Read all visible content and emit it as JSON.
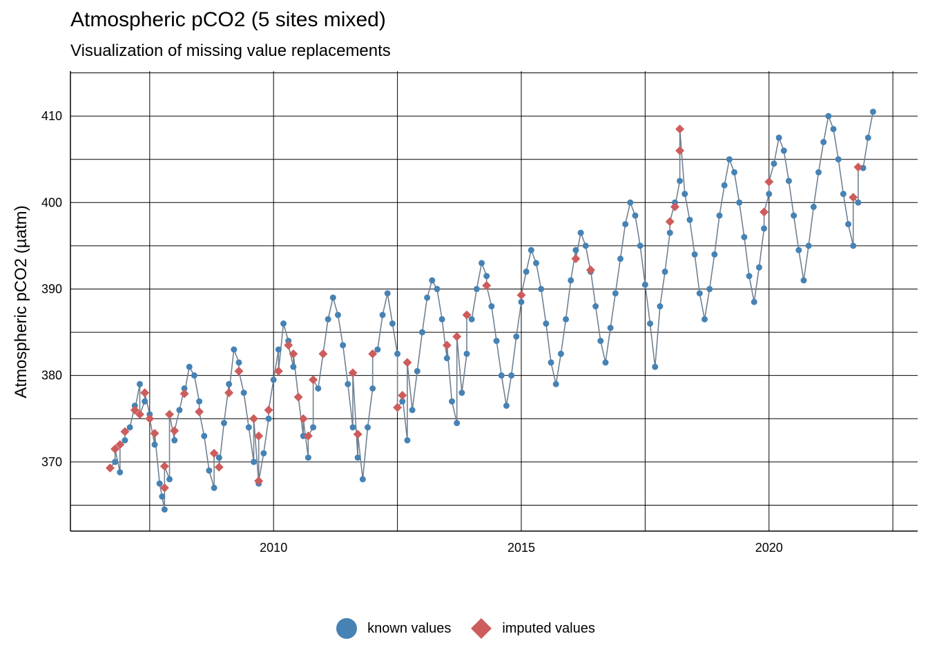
{
  "chart_data": {
    "type": "scatter",
    "title": "Atmospheric pCO2 (5 sites mixed)",
    "subtitle": "Visualization of missing value replacements",
    "xlabel": "",
    "ylabel": "Atmospheric pCO2 (µatm)",
    "xlim": [
      2005.9,
      2023.0
    ],
    "ylim": [
      362,
      415.2
    ],
    "x_major_ticks": [
      2010,
      2015,
      2020
    ],
    "x_minor_ticks": [
      2007.5,
      2012.5,
      2017.5,
      2022.5
    ],
    "y_major_ticks": [
      370,
      380,
      390,
      400,
      410
    ],
    "y_minor_ticks": [
      365,
      375,
      385,
      395,
      405,
      415
    ],
    "grid": true,
    "legend_position": "bottom",
    "colors": {
      "known": "#4682B4",
      "imputed": "#CD5C5C",
      "line": "#708090"
    },
    "series": [
      {
        "name": "known values",
        "marker": "circle",
        "sampled": true,
        "points": [
          [
            2006.8,
            370.0
          ],
          [
            2006.9,
            368.8
          ],
          [
            2007.0,
            372.5
          ],
          [
            2007.1,
            374.0
          ],
          [
            2007.2,
            376.5
          ],
          [
            2007.3,
            379.0
          ],
          [
            2007.4,
            377.0
          ],
          [
            2007.5,
            375.5
          ],
          [
            2007.6,
            372.0
          ],
          [
            2007.7,
            367.5
          ],
          [
            2007.75,
            366.0
          ],
          [
            2007.8,
            364.5
          ],
          [
            2007.9,
            368.0
          ],
          [
            2008.0,
            372.5
          ],
          [
            2008.1,
            376.0
          ],
          [
            2008.2,
            378.5
          ],
          [
            2008.3,
            381.0
          ],
          [
            2008.4,
            380.0
          ],
          [
            2008.5,
            377.0
          ],
          [
            2008.6,
            373.0
          ],
          [
            2008.7,
            369.0
          ],
          [
            2008.8,
            367.0
          ],
          [
            2008.9,
            370.5
          ],
          [
            2009.0,
            374.5
          ],
          [
            2009.1,
            379.0
          ],
          [
            2009.2,
            383.0
          ],
          [
            2009.3,
            381.5
          ],
          [
            2009.4,
            378.0
          ],
          [
            2009.5,
            374.0
          ],
          [
            2009.6,
            370.0
          ],
          [
            2009.7,
            367.5
          ],
          [
            2009.8,
            371.0
          ],
          [
            2009.9,
            375.0
          ],
          [
            2010.0,
            379.5
          ],
          [
            2010.1,
            383.0
          ],
          [
            2010.2,
            386.0
          ],
          [
            2010.3,
            384.0
          ],
          [
            2010.4,
            381.0
          ],
          [
            2010.5,
            377.5
          ],
          [
            2010.6,
            373.0
          ],
          [
            2010.7,
            370.5
          ],
          [
            2010.8,
            374.0
          ],
          [
            2010.9,
            378.5
          ],
          [
            2011.0,
            382.5
          ],
          [
            2011.1,
            386.5
          ],
          [
            2011.2,
            389.0
          ],
          [
            2011.3,
            387.0
          ],
          [
            2011.4,
            383.5
          ],
          [
            2011.5,
            379.0
          ],
          [
            2011.6,
            374.0
          ],
          [
            2011.7,
            370.5
          ],
          [
            2011.8,
            368.0
          ],
          [
            2011.9,
            374.0
          ],
          [
            2012.0,
            378.5
          ],
          [
            2012.1,
            383.0
          ],
          [
            2012.2,
            387.0
          ],
          [
            2012.3,
            389.5
          ],
          [
            2012.4,
            386.0
          ],
          [
            2012.5,
            382.5
          ],
          [
            2012.6,
            377.0
          ],
          [
            2012.7,
            372.5
          ],
          [
            2012.8,
            376.0
          ],
          [
            2012.9,
            380.5
          ],
          [
            2013.0,
            385.0
          ],
          [
            2013.1,
            389.0
          ],
          [
            2013.2,
            391.0
          ],
          [
            2013.3,
            390.0
          ],
          [
            2013.4,
            386.5
          ],
          [
            2013.5,
            382.0
          ],
          [
            2013.6,
            377.0
          ],
          [
            2013.7,
            374.5
          ],
          [
            2013.8,
            378.0
          ],
          [
            2013.9,
            382.5
          ],
          [
            2014.0,
            386.5
          ],
          [
            2014.1,
            390.0
          ],
          [
            2014.2,
            393.0
          ],
          [
            2014.3,
            391.5
          ],
          [
            2014.4,
            388.0
          ],
          [
            2014.5,
            384.0
          ],
          [
            2014.6,
            380.0
          ],
          [
            2014.7,
            376.5
          ],
          [
            2014.8,
            380.0
          ],
          [
            2014.9,
            384.5
          ],
          [
            2015.0,
            388.5
          ],
          [
            2015.1,
            392.0
          ],
          [
            2015.2,
            394.5
          ],
          [
            2015.3,
            393.0
          ],
          [
            2015.4,
            390.0
          ],
          [
            2015.5,
            386.0
          ],
          [
            2015.6,
            381.5
          ],
          [
            2015.7,
            379.0
          ],
          [
            2015.8,
            382.5
          ],
          [
            2015.9,
            386.5
          ],
          [
            2016.0,
            391.0
          ],
          [
            2016.1,
            394.5
          ],
          [
            2016.2,
            396.5
          ],
          [
            2016.3,
            395.0
          ],
          [
            2016.4,
            392.0
          ],
          [
            2016.5,
            388.0
          ],
          [
            2016.6,
            384.0
          ],
          [
            2016.7,
            381.5
          ],
          [
            2016.8,
            385.5
          ],
          [
            2016.9,
            389.5
          ],
          [
            2017.0,
            393.5
          ],
          [
            2017.1,
            397.5
          ],
          [
            2017.2,
            400.0
          ],
          [
            2017.3,
            398.5
          ],
          [
            2017.4,
            395.0
          ],
          [
            2017.5,
            390.5
          ],
          [
            2017.6,
            386.0
          ],
          [
            2017.7,
            381.0
          ],
          [
            2017.8,
            388.0
          ],
          [
            2017.9,
            392.0
          ],
          [
            2018.0,
            396.5
          ],
          [
            2018.1,
            400.0
          ],
          [
            2018.2,
            402.5
          ],
          [
            2018.3,
            401.0
          ],
          [
            2018.4,
            398.0
          ],
          [
            2018.5,
            394.0
          ],
          [
            2018.6,
            389.5
          ],
          [
            2018.7,
            386.5
          ],
          [
            2018.8,
            390.0
          ],
          [
            2018.9,
            394.0
          ],
          [
            2019.0,
            398.5
          ],
          [
            2019.1,
            402.0
          ],
          [
            2019.2,
            405.0
          ],
          [
            2019.3,
            403.5
          ],
          [
            2019.4,
            400.0
          ],
          [
            2019.5,
            396.0
          ],
          [
            2019.6,
            391.5
          ],
          [
            2019.7,
            388.5
          ],
          [
            2019.8,
            392.5
          ],
          [
            2019.9,
            397.0
          ],
          [
            2020.0,
            401.0
          ],
          [
            2020.1,
            404.5
          ],
          [
            2020.2,
            407.5
          ],
          [
            2020.3,
            406.0
          ],
          [
            2020.4,
            402.5
          ],
          [
            2020.5,
            398.5
          ],
          [
            2020.6,
            394.5
          ],
          [
            2020.7,
            391.0
          ],
          [
            2020.8,
            395.0
          ],
          [
            2020.9,
            399.5
          ],
          [
            2021.0,
            403.5
          ],
          [
            2021.1,
            407.0
          ],
          [
            2021.2,
            410.0
          ],
          [
            2021.3,
            408.5
          ],
          [
            2021.4,
            405.0
          ],
          [
            2021.5,
            401.0
          ],
          [
            2021.6,
            397.5
          ],
          [
            2021.7,
            395.0
          ],
          [
            2021.8,
            400.0
          ],
          [
            2021.9,
            404.0
          ],
          [
            2022.0,
            407.5
          ],
          [
            2022.1,
            410.5
          ]
        ]
      },
      {
        "name": "imputed values",
        "marker": "diamond",
        "sampled": true,
        "points": [
          [
            2006.7,
            369.3
          ],
          [
            2006.8,
            371.5
          ],
          [
            2006.9,
            372.0
          ],
          [
            2007.0,
            373.5
          ],
          [
            2007.2,
            376.0
          ],
          [
            2007.3,
            375.5
          ],
          [
            2007.4,
            378.0
          ],
          [
            2007.5,
            375.0
          ],
          [
            2007.6,
            373.3
          ],
          [
            2007.8,
            367.0
          ],
          [
            2007.8,
            369.5
          ],
          [
            2007.9,
            375.5
          ],
          [
            2008.0,
            373.6
          ],
          [
            2008.2,
            377.9
          ],
          [
            2008.5,
            375.8
          ],
          [
            2008.8,
            371.0
          ],
          [
            2008.9,
            369.4
          ],
          [
            2009.1,
            378.0
          ],
          [
            2009.3,
            380.5
          ],
          [
            2009.6,
            375.0
          ],
          [
            2009.7,
            373.0
          ],
          [
            2009.7,
            367.8
          ],
          [
            2009.9,
            376.0
          ],
          [
            2010.1,
            380.5
          ],
          [
            2010.3,
            383.5
          ],
          [
            2010.4,
            382.5
          ],
          [
            2010.5,
            377.5
          ],
          [
            2010.6,
            375.0
          ],
          [
            2010.7,
            373.0
          ],
          [
            2010.8,
            379.5
          ],
          [
            2011.0,
            382.5
          ],
          [
            2011.6,
            380.3
          ],
          [
            2011.7,
            373.2
          ],
          [
            2012.0,
            382.5
          ],
          [
            2012.5,
            376.3
          ],
          [
            2012.6,
            377.7
          ],
          [
            2012.7,
            381.5
          ],
          [
            2013.5,
            383.5
          ],
          [
            2013.7,
            384.5
          ],
          [
            2013.9,
            387.0
          ],
          [
            2014.3,
            390.4
          ],
          [
            2015.0,
            389.3
          ],
          [
            2016.1,
            393.5
          ],
          [
            2016.4,
            392.2
          ],
          [
            2018.0,
            397.8
          ],
          [
            2018.1,
            399.5
          ],
          [
            2018.2,
            406.0
          ],
          [
            2018.2,
            408.5
          ],
          [
            2019.9,
            398.9
          ],
          [
            2020.0,
            402.4
          ],
          [
            2021.7,
            400.6
          ],
          [
            2021.8,
            404.1
          ]
        ]
      }
    ]
  }
}
